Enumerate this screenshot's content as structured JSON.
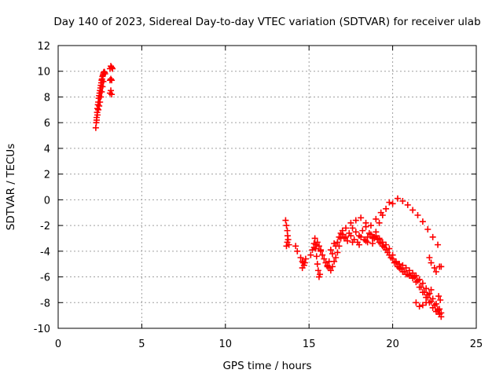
{
  "chart_data": {
    "type": "scatter",
    "title": "Day 140 of 2023, Sidereal Day-to-day VTEC variation (SDTVAR) for receiver ulab",
    "xlabel": "GPS time / hours",
    "ylabel": "SDTVAR / TECUs",
    "xlim": [
      0,
      25
    ],
    "ylim": [
      -10,
      12
    ],
    "xticks": [
      0,
      5,
      10,
      15,
      20,
      25
    ],
    "yticks": [
      -10,
      -8,
      -6,
      -4,
      -2,
      0,
      2,
      4,
      6,
      8,
      10,
      12
    ],
    "xtick_labels": [
      "0",
      "5",
      "10",
      "15",
      "20",
      "25"
    ],
    "ytick_labels": [
      "-10",
      "-8",
      "-6",
      "-4",
      "-2",
      "0",
      "2",
      "4",
      "6",
      "8",
      "10",
      "12"
    ],
    "grid": true,
    "marker": "+",
    "color": "#ff0000",
    "series": [
      {
        "name": "SDTVAR",
        "x": [
          2.25,
          2.28,
          2.3,
          2.33,
          2.35,
          2.38,
          2.4,
          2.43,
          2.45,
          2.48,
          2.5,
          2.53,
          2.55,
          2.58,
          2.6,
          2.62,
          2.65,
          2.68,
          2.7,
          2.72,
          2.75,
          2.78,
          2.8,
          2.3,
          2.35,
          2.4,
          2.45,
          2.5,
          2.55,
          2.6,
          2.65,
          2.7,
          3.1,
          3.15,
          3.2,
          3.1,
          3.15,
          3.2,
          3.1,
          3.15,
          3.2,
          3.25,
          13.6,
          13.65,
          13.7,
          13.72,
          13.75,
          13.7,
          13.65,
          13.8,
          14.2,
          14.3,
          14.5,
          14.6,
          14.7,
          14.6,
          14.75,
          14.8,
          14.65,
          15.1,
          15.2,
          15.3,
          15.35,
          15.4,
          15.45,
          15.5,
          15.55,
          15.6,
          15.65,
          15.7,
          15.3,
          15.4,
          15.5,
          15.6,
          15.7,
          15.8,
          15.9,
          16.0,
          16.1,
          16.2,
          16.3,
          16.4,
          16.5,
          16.6,
          16.7,
          16.8,
          16.9,
          16.5,
          16.6,
          16.7,
          16.8,
          16.9,
          17.0,
          16.3,
          16.4,
          16.2,
          16.1,
          17.0,
          17.2,
          17.4,
          17.6,
          17.8,
          18.0,
          18.2,
          18.4,
          18.6,
          18.8,
          19.0,
          19.2,
          19.4,
          19.6,
          19.8,
          17.1,
          17.3,
          17.5,
          17.7,
          17.9,
          18.1,
          18.3,
          18.5,
          18.7,
          18.9,
          17.2,
          17.5,
          17.8,
          18.1,
          18.4,
          18.7,
          19.0,
          19.3,
          17.6,
          18.0,
          18.4,
          18.8,
          19.2,
          18.5,
          18.8,
          19.0,
          19.2,
          19.4,
          19.6,
          19.8,
          20.0,
          20.2,
          20.4,
          20.6,
          20.8,
          21.0,
          21.2,
          21.4,
          21.6,
          21.8,
          22.0,
          22.2,
          22.4,
          22.6,
          22.8,
          18.9,
          19.1,
          19.3,
          19.5,
          19.7,
          19.9,
          20.1,
          20.3,
          20.5,
          20.7,
          20.9,
          21.1,
          21.3,
          21.5,
          21.7,
          21.9,
          22.1,
          22.3,
          22.5,
          22.7,
          22.9,
          19.2,
          19.4,
          19.6,
          19.8,
          20.0,
          20.2,
          20.4,
          20.6,
          20.8,
          21.0,
          21.2,
          21.4,
          21.6,
          21.8,
          22.0,
          22.2,
          22.4,
          22.6,
          22.8,
          20.0,
          20.3,
          20.6,
          20.9,
          21.2,
          21.5,
          21.8,
          22.1,
          22.4,
          22.7,
          21.4,
          21.6,
          21.8,
          22.0,
          22.1,
          22.3,
          22.2,
          22.3,
          22.5,
          22.6,
          22.8,
          22.9,
          22.7,
          22.8,
          22.9,
          22.85,
          22.75
        ],
        "y": [
          5.6,
          6.0,
          6.4,
          6.8,
          7.1,
          7.4,
          7.6,
          7.9,
          8.1,
          8.3,
          8.5,
          8.7,
          8.9,
          9.1,
          9.3,
          9.4,
          9.6,
          9.7,
          9.8,
          9.9,
          9.95,
          9.9,
          9.8,
          6.2,
          6.6,
          7.0,
          7.3,
          7.6,
          8.0,
          8.4,
          8.8,
          9.2,
          8.3,
          8.5,
          8.2,
          9.3,
          9.4,
          9.3,
          10.2,
          10.4,
          10.3,
          10.2,
          -1.6,
          -2.0,
          -2.4,
          -2.8,
          -3.1,
          -3.3,
          -3.6,
          -3.5,
          -3.6,
          -4.0,
          -4.5,
          -4.8,
          -5.1,
          -5.3,
          -4.9,
          -4.6,
          -4.9,
          -4.3,
          -3.9,
          -3.4,
          -3.0,
          -3.8,
          -4.4,
          -5.0,
          -5.5,
          -6.0,
          -5.8,
          -4.0,
          -3.7,
          -3.5,
          -3.3,
          -3.6,
          -3.9,
          -4.3,
          -4.6,
          -4.9,
          -5.1,
          -5.3,
          -5.5,
          -5.2,
          -4.8,
          -4.5,
          -4.1,
          -3.6,
          -3.0,
          -3.4,
          -3.6,
          -3.3,
          -2.9,
          -2.6,
          -2.4,
          -3.9,
          -4.2,
          -4.8,
          -5.2,
          -2.7,
          -2.9,
          -2.6,
          -2.2,
          -2.5,
          -2.8,
          -2.4,
          -2.1,
          -2.6,
          -2.9,
          -2.5,
          -1.8,
          -1.2,
          -0.7,
          -0.2,
          -3.0,
          -3.2,
          -2.8,
          -3.1,
          -3.3,
          -2.9,
          -3.1,
          -3.3,
          -2.7,
          -3.0,
          -2.2,
          -1.8,
          -1.6,
          -1.4,
          -1.8,
          -2.0,
          -1.5,
          -1.0,
          -3.3,
          -3.5,
          -3.2,
          -3.4,
          -3.0,
          -2.9,
          -3.0,
          -2.8,
          -3.1,
          -3.3,
          -3.5,
          -3.8,
          -4.3,
          -4.9,
          -5.3,
          -5.6,
          -5.8,
          -5.9,
          -6.1,
          -6.4,
          -6.8,
          -7.2,
          -7.6,
          -8.0,
          -8.4,
          -8.7,
          -8.9,
          -2.9,
          -3.1,
          -3.4,
          -3.7,
          -4.1,
          -4.5,
          -4.9,
          -5.2,
          -5.4,
          -5.6,
          -5.8,
          -5.9,
          -6.0,
          -6.3,
          -6.8,
          -7.2,
          -7.6,
          -7.9,
          -8.2,
          -8.5,
          -8.8,
          -3.3,
          -3.6,
          -3.9,
          -4.3,
          -4.6,
          -4.8,
          -5.0,
          -5.1,
          -5.3,
          -5.5,
          -5.7,
          -5.9,
          -6.2,
          -6.5,
          -6.9,
          -7.3,
          -7.7,
          -8.1,
          -8.5,
          -0.3,
          0.1,
          -0.1,
          -0.4,
          -0.8,
          -1.2,
          -1.7,
          -2.3,
          -2.9,
          -3.5,
          -8.0,
          -8.3,
          -8.2,
          -8.0,
          -7.4,
          -7.0,
          -4.5,
          -4.9,
          -5.3,
          -5.6,
          -5.2,
          -5.2,
          -8.6,
          -8.9,
          -9.1,
          -7.8,
          -7.5
        ]
      }
    ]
  }
}
